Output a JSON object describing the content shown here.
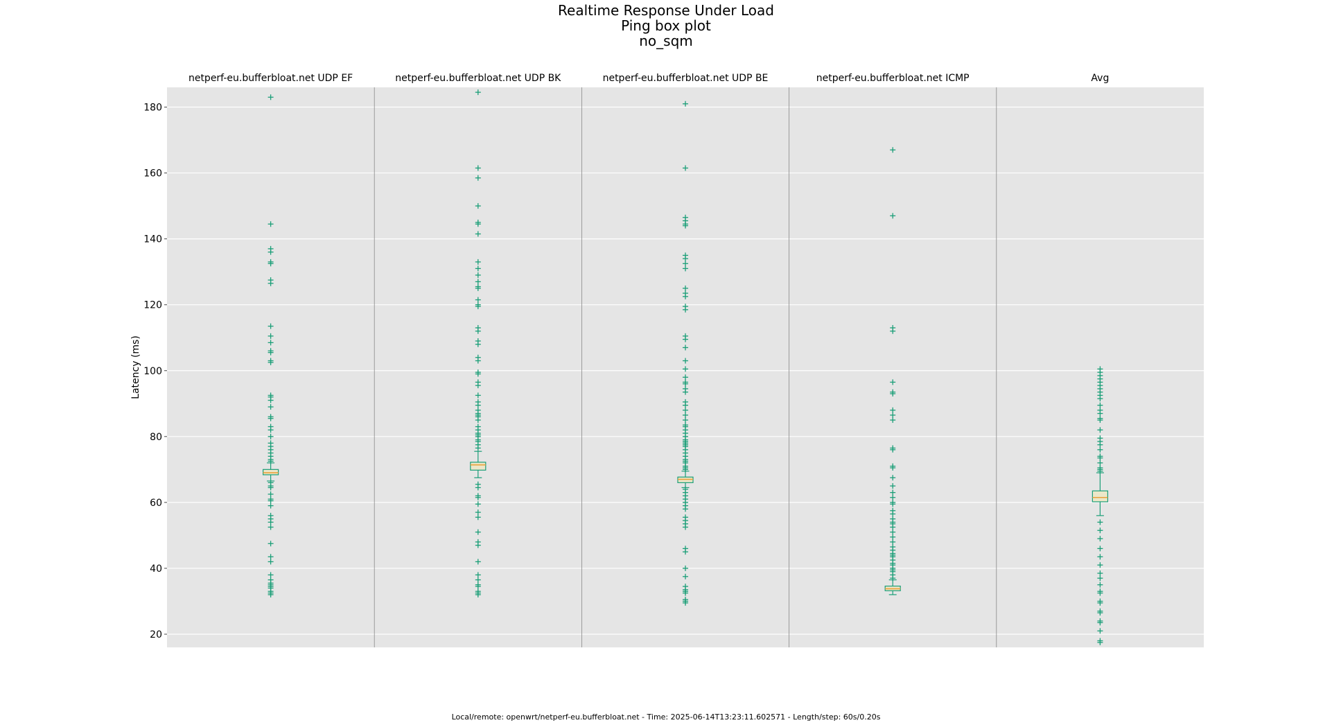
{
  "title": {
    "line1": "Realtime Response Under Load",
    "line2": "Ping box plot",
    "line3": "no_sqm"
  },
  "footer": "Local/remote: openwrt/netperf-eu.bufferbloat.net - Time: 2025-06-14T13:23:11.602571 - Length/step: 60s/0.20s",
  "colors": {
    "panel_bg": "#e5e5e5",
    "box": "#1a9e77",
    "median": "#e9a23b",
    "box_fill": "#ece7c9",
    "grid": "#ffffff",
    "divider": "#888888"
  },
  "chart_data": {
    "type": "box",
    "ylabel": "Latency (ms)",
    "ylim": [
      16,
      186
    ],
    "yticks": [
      20,
      40,
      60,
      80,
      100,
      120,
      140,
      160,
      180
    ],
    "grid": true,
    "panels": [
      {
        "name": "netperf-eu.bufferbloat.net UDP EF",
        "q1": 68.4,
        "median": 69.0,
        "q3": 70.0,
        "whisker_low": 66.5,
        "whisker_high": 72.0,
        "outliers": [
          183,
          144.5,
          137,
          136,
          133,
          132.5,
          127.5,
          126.5,
          113.5,
          110.5,
          108.5,
          106,
          105.5,
          103,
          102.5,
          92.5,
          92,
          91,
          89,
          86,
          85.5,
          83,
          82,
          80,
          78,
          77,
          76,
          75,
          74,
          73,
          72.5,
          66,
          65,
          64.5,
          62.5,
          61,
          60.5,
          59,
          56,
          55,
          54,
          52.5,
          47.5,
          43.5,
          42,
          38,
          36.5,
          35.5,
          35,
          34.5,
          34,
          33,
          32.5,
          32
        ]
      },
      {
        "name": "netperf-eu.bufferbloat.net UDP BK",
        "q1": 69.8,
        "median": 71.4,
        "q3": 72.2,
        "whisker_low": 67.5,
        "whisker_high": 75.5,
        "outliers": [
          184.5,
          161.5,
          158.5,
          150,
          145,
          144.5,
          141.5,
          133,
          131,
          129,
          127,
          125.5,
          125,
          121.5,
          120,
          119.5,
          113,
          112,
          109,
          108,
          104,
          103,
          99.5,
          99,
          96.5,
          95.5,
          92.5,
          90.5,
          89.5,
          88,
          87,
          86.5,
          86,
          85,
          83,
          82,
          81,
          80.5,
          80,
          79,
          78.5,
          77.5,
          76.5,
          65.5,
          64.5,
          62,
          61.5,
          59.5,
          57,
          55.5,
          51,
          48,
          47,
          42,
          38,
          36.5,
          35,
          34.5,
          33,
          32.5,
          32
        ]
      },
      {
        "name": "netperf-eu.bufferbloat.net UDP BE",
        "q1": 66.0,
        "median": 67.0,
        "q3": 67.7,
        "whisker_low": 64.5,
        "whisker_high": 69.5,
        "outliers": [
          181,
          161.5,
          146.5,
          145.5,
          144.5,
          144,
          135,
          134,
          132.5,
          131,
          125,
          123.5,
          122.5,
          119.5,
          118.5,
          110.5,
          109.5,
          107,
          103,
          100.5,
          98,
          96.5,
          96,
          94.5,
          93.5,
          90.5,
          89.5,
          88,
          86.5,
          85,
          83.5,
          83,
          82,
          81,
          80,
          79,
          78.5,
          78,
          77.5,
          77,
          76,
          75,
          74,
          73,
          72.5,
          72,
          71,
          70.5,
          70,
          64,
          63,
          62,
          61,
          60,
          59,
          58,
          55.5,
          54.5,
          53.5,
          52.5,
          46,
          45,
          40,
          37.5,
          34.5,
          33.5,
          33,
          32.5,
          30.5,
          30,
          29.5
        ]
      },
      {
        "name": "netperf-eu.bufferbloat.net ICMP",
        "q1": 33.2,
        "median": 33.8,
        "q3": 34.6,
        "whisker_low": 32.0,
        "whisker_high": 36.5,
        "outliers": [
          167,
          147,
          113,
          112,
          96.5,
          93.5,
          93,
          88,
          86.5,
          85,
          76.5,
          76,
          71,
          70.5,
          67.5,
          65,
          63,
          61.5,
          60,
          59.5,
          57.5,
          56.5,
          55,
          54,
          53.5,
          52.5,
          51,
          49.5,
          48,
          46.5,
          45.5,
          44.5,
          44,
          43.5,
          42.5,
          41.5,
          41,
          40,
          39.5,
          39,
          38,
          37
        ]
      },
      {
        "name": "Avg",
        "q1": 60.2,
        "median": 61.5,
        "q3": 63.5,
        "whisker_low": 56.0,
        "whisker_high": 69.0,
        "outliers": [
          100.5,
          99.5,
          98.5,
          97.5,
          96.5,
          95.5,
          94.5,
          93.5,
          92.5,
          91.5,
          89.5,
          88,
          87,
          85.5,
          85,
          82,
          79.5,
          78.5,
          77.5,
          76,
          74,
          73.5,
          72,
          70.5,
          70,
          69.5,
          54,
          51.5,
          49,
          46,
          43.5,
          41,
          38.5,
          37,
          35,
          33,
          32.5,
          30,
          29.5,
          27,
          26.5,
          24,
          23.5,
          21,
          18,
          17.5
        ]
      }
    ]
  }
}
